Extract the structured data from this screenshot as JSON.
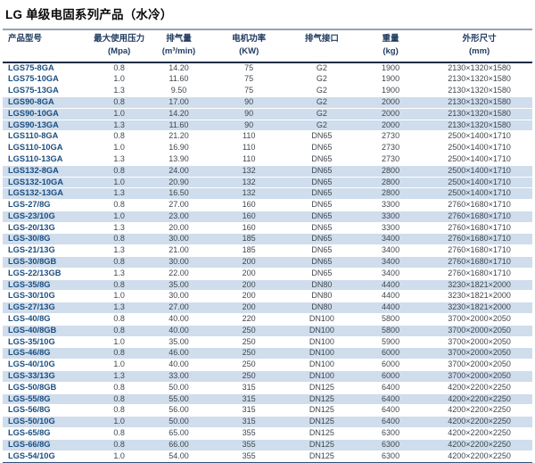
{
  "page_title": "LG 单级电固系列产品（水冷）",
  "colors": {
    "model_text": "#1b4f82",
    "value_text": "#40474e",
    "header_text": "#1f3a5f",
    "row_highlight_bg": "#cfddec",
    "header_top_rule": "#97a3b0",
    "header_bottom_rule": "#1c2b45",
    "table_bottom_rule": "#2e5076"
  },
  "table": {
    "columns": [
      {
        "label": "产品型号",
        "unit": ""
      },
      {
        "label": "最大使用压力",
        "unit": "(Mpa)"
      },
      {
        "label": "排气量",
        "unit": "(m³/min)"
      },
      {
        "label": "电机功率",
        "unit": "(KW)"
      },
      {
        "label": "排气接口",
        "unit": ""
      },
      {
        "label": "重量",
        "unit": "(kg)"
      },
      {
        "label": "外形尺寸",
        "unit": "(mm)"
      }
    ],
    "rows": [
      {
        "model": "LGS75-8GA",
        "pressure": "0.8",
        "displacement": "14.20",
        "power": "75",
        "interface": "G2",
        "weight": "1900",
        "dimensions": "2130×1320×1580",
        "highlight": false
      },
      {
        "model": "LGS75-10GA",
        "pressure": "1.0",
        "displacement": "11.60",
        "power": "75",
        "interface": "G2",
        "weight": "1900",
        "dimensions": "2130×1320×1580",
        "highlight": false
      },
      {
        "model": "LGS75-13GA",
        "pressure": "1.3",
        "displacement": "9.50",
        "power": "75",
        "interface": "G2",
        "weight": "1900",
        "dimensions": "2130×1320×1580",
        "highlight": false
      },
      {
        "model": "LGS90-8GA",
        "pressure": "0.8",
        "displacement": "17.00",
        "power": "90",
        "interface": "G2",
        "weight": "2000",
        "dimensions": "2130×1320×1580",
        "highlight": true
      },
      {
        "model": "LGS90-10GA",
        "pressure": "1.0",
        "displacement": "14.20",
        "power": "90",
        "interface": "G2",
        "weight": "2000",
        "dimensions": "2130×1320×1580",
        "highlight": true
      },
      {
        "model": "LGS90-13GA",
        "pressure": "1.3",
        "displacement": "11.60",
        "power": "90",
        "interface": "G2",
        "weight": "2000",
        "dimensions": "2130×1320×1580",
        "highlight": true
      },
      {
        "model": "LGS110-8GA",
        "pressure": "0.8",
        "displacement": "21.20",
        "power": "110",
        "interface": "DN65",
        "weight": "2730",
        "dimensions": "2500×1400×1710",
        "highlight": false
      },
      {
        "model": "LGS110-10GA",
        "pressure": "1.0",
        "displacement": "16.90",
        "power": "110",
        "interface": "DN65",
        "weight": "2730",
        "dimensions": "2500×1400×1710",
        "highlight": false
      },
      {
        "model": "LGS110-13GA",
        "pressure": "1.3",
        "displacement": "13.90",
        "power": "110",
        "interface": "DN65",
        "weight": "2730",
        "dimensions": "2500×1400×1710",
        "highlight": false
      },
      {
        "model": "LGS132-8GA",
        "pressure": "0.8",
        "displacement": "24.00",
        "power": "132",
        "interface": "DN65",
        "weight": "2800",
        "dimensions": "2500×1400×1710",
        "highlight": true
      },
      {
        "model": "LGS132-10GA",
        "pressure": "1.0",
        "displacement": "20.90",
        "power": "132",
        "interface": "DN65",
        "weight": "2800",
        "dimensions": "2500×1400×1710",
        "highlight": true
      },
      {
        "model": "LGS132-13GA",
        "pressure": "1.3",
        "displacement": "16.50",
        "power": "132",
        "interface": "DN65",
        "weight": "2800",
        "dimensions": "2500×1400×1710",
        "highlight": true
      },
      {
        "model": "LGS-27/8G",
        "pressure": "0.8",
        "displacement": "27.00",
        "power": "160",
        "interface": "DN65",
        "weight": "3300",
        "dimensions": "2760×1680×1710",
        "highlight": false
      },
      {
        "model": "LGS-23/10G",
        "pressure": "1.0",
        "displacement": "23.00",
        "power": "160",
        "interface": "DN65",
        "weight": "3300",
        "dimensions": "2760×1680×1710",
        "highlight": true
      },
      {
        "model": "LGS-20/13G",
        "pressure": "1.3",
        "displacement": "20.00",
        "power": "160",
        "interface": "DN65",
        "weight": "3300",
        "dimensions": "2760×1680×1710",
        "highlight": false
      },
      {
        "model": "LGS-30/8G",
        "pressure": "0.8",
        "displacement": "30.00",
        "power": "185",
        "interface": "DN65",
        "weight": "3400",
        "dimensions": "2760×1680×1710",
        "highlight": true
      },
      {
        "model": "LGS-21/13G",
        "pressure": "1.3",
        "displacement": "21.00",
        "power": "185",
        "interface": "DN65",
        "weight": "3400",
        "dimensions": "2760×1680×1710",
        "highlight": false
      },
      {
        "model": "LGS-30/8GB",
        "pressure": "0.8",
        "displacement": "30.00",
        "power": "200",
        "interface": "DN65",
        "weight": "3400",
        "dimensions": "2760×1680×1710",
        "highlight": true
      },
      {
        "model": "LGS-22/13GB",
        "pressure": "1.3",
        "displacement": "22.00",
        "power": "200",
        "interface": "DN65",
        "weight": "3400",
        "dimensions": "2760×1680×1710",
        "highlight": false
      },
      {
        "model": "LGS-35/8G",
        "pressure": "0.8",
        "displacement": "35.00",
        "power": "200",
        "interface": "DN80",
        "weight": "4400",
        "dimensions": "3230×1821×2000",
        "highlight": true
      },
      {
        "model": "LGS-30/10G",
        "pressure": "1.0",
        "displacement": "30.00",
        "power": "200",
        "interface": "DN80",
        "weight": "4400",
        "dimensions": "3230×1821×2000",
        "highlight": false
      },
      {
        "model": "LGS-27/13G",
        "pressure": "1.3",
        "displacement": "27.00",
        "power": "200",
        "interface": "DN80",
        "weight": "4400",
        "dimensions": "3230×1821×2000",
        "highlight": true
      },
      {
        "model": "LGS-40/8G",
        "pressure": "0.8",
        "displacement": "40.00",
        "power": "220",
        "interface": "DN100",
        "weight": "5800",
        "dimensions": "3700×2000×2050",
        "highlight": false
      },
      {
        "model": "LGS-40/8GB",
        "pressure": "0.8",
        "displacement": "40.00",
        "power": "250",
        "interface": "DN100",
        "weight": "5800",
        "dimensions": "3700×2000×2050",
        "highlight": true
      },
      {
        "model": "LGS-35/10G",
        "pressure": "1.0",
        "displacement": "35.00",
        "power": "250",
        "interface": "DN100",
        "weight": "5900",
        "dimensions": "3700×2000×2050",
        "highlight": false
      },
      {
        "model": "LGS-46/8G",
        "pressure": "0.8",
        "displacement": "46.00",
        "power": "250",
        "interface": "DN100",
        "weight": "6000",
        "dimensions": "3700×2000×2050",
        "highlight": true
      },
      {
        "model": "LGS-40/10G",
        "pressure": "1.0",
        "displacement": "40.00",
        "power": "250",
        "interface": "DN100",
        "weight": "6000",
        "dimensions": "3700×2000×2050",
        "highlight": false
      },
      {
        "model": "LGS-33/13G",
        "pressure": "1.3",
        "displacement": "33.00",
        "power": "250",
        "interface": "DN100",
        "weight": "6000",
        "dimensions": "3700×2000×2050",
        "highlight": true
      },
      {
        "model": "LGS-50/8GB",
        "pressure": "0.8",
        "displacement": "50.00",
        "power": "315",
        "interface": "DN125",
        "weight": "6400",
        "dimensions": "4200×2200×2250",
        "highlight": false
      },
      {
        "model": "LGS-55/8G",
        "pressure": "0.8",
        "displacement": "55.00",
        "power": "315",
        "interface": "DN125",
        "weight": "6400",
        "dimensions": "4200×2200×2250",
        "highlight": true
      },
      {
        "model": "LGS-56/8G",
        "pressure": "0.8",
        "displacement": "56.00",
        "power": "315",
        "interface": "DN125",
        "weight": "6400",
        "dimensions": "4200×2200×2250",
        "highlight": false
      },
      {
        "model": "LGS-50/10G",
        "pressure": "1.0",
        "displacement": "50.00",
        "power": "315",
        "interface": "DN125",
        "weight": "6400",
        "dimensions": "4200×2200×2250",
        "highlight": true
      },
      {
        "model": "LGS-65/8G",
        "pressure": "0.8",
        "displacement": "65.00",
        "power": "355",
        "interface": "DN125",
        "weight": "6300",
        "dimensions": "4200×2200×2250",
        "highlight": false
      },
      {
        "model": "LGS-66/8G",
        "pressure": "0.8",
        "displacement": "66.00",
        "power": "355",
        "interface": "DN125",
        "weight": "6300",
        "dimensions": "4200×2200×2250",
        "highlight": true
      },
      {
        "model": "LGS-54/10G",
        "pressure": "1.0",
        "displacement": "54.00",
        "power": "355",
        "interface": "DN125",
        "weight": "6300",
        "dimensions": "4200×2200×2250",
        "highlight": false
      }
    ]
  }
}
